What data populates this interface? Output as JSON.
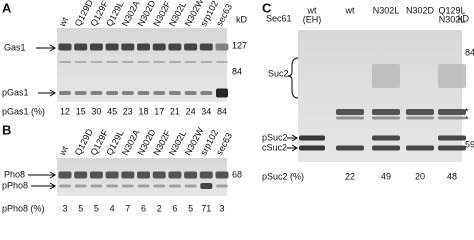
{
  "panel_a": {
    "label": "A",
    "lanes": [
      "wt",
      "Q129D",
      "Q129F",
      "Q129L",
      "N302A",
      "N302D",
      "N302F",
      "N302L",
      "N302W",
      "srp102",
      "sec63"
    ],
    "unit": "kD",
    "markers": [
      "127",
      "84"
    ],
    "bands": [
      "Gas1",
      "pGas1"
    ],
    "quant_label": "pGas1 (%)",
    "quant": [
      12,
      15,
      30,
      45,
      23,
      18,
      17,
      21,
      24,
      34,
      84
    ]
  },
  "panel_b": {
    "label": "B",
    "lanes": [
      "wt",
      "Q129D",
      "Q129F",
      "Q129L",
      "N302A",
      "N302D",
      "N302F",
      "N302L",
      "N302W",
      "srp102",
      "sec63"
    ],
    "markers": [
      "68"
    ],
    "bands": [
      "Pho8",
      "pPho8"
    ],
    "quant_label": "pPho8 (%)",
    "quant": [
      3,
      5,
      5,
      4,
      7,
      6,
      2,
      6,
      5,
      71,
      3
    ]
  },
  "panel_c": {
    "label": "C",
    "row_label": "Sec61",
    "lanes": [
      [
        "wt",
        "(EH)"
      ],
      [
        "wt"
      ],
      [
        "N302L"
      ],
      [
        "N302D"
      ],
      [
        "Q129L",
        "N302L"
      ]
    ],
    "unit": "kD",
    "markers": [
      "84",
      "59"
    ],
    "bands": [
      "Suc2",
      "pSuc2",
      "cSuc2"
    ],
    "stars": [
      "*",
      "*"
    ],
    "quant_label": "pSuc2 (%)",
    "quant": [
      22,
      49,
      20,
      48
    ]
  }
}
